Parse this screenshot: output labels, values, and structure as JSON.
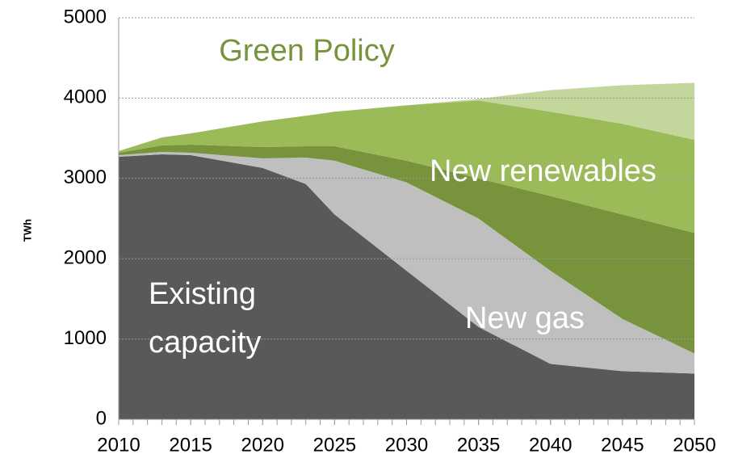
{
  "chart_data": {
    "type": "stacked_area",
    "title": "Green Policy",
    "y_label": "TWh",
    "x": [
      2010,
      2013,
      2015,
      2020,
      2023,
      2025,
      2030,
      2035,
      2040,
      2045,
      2050
    ],
    "series": [
      {
        "name": "Existing capacity",
        "color": "#595959",
        "values": [
          3270,
          3300,
          3290,
          3130,
          2930,
          2550,
          1850,
          1150,
          690,
          600,
          570
        ]
      },
      {
        "name": "New gas",
        "color": "#bfbfbf",
        "values": [
          20,
          30,
          30,
          120,
          330,
          670,
          1100,
          1350,
          1160,
          650,
          250
        ]
      },
      {
        "color": "#77933c",
        "values": [
          30,
          80,
          100,
          140,
          140,
          180,
          270,
          500,
          930,
          1300,
          1500
        ]
      },
      {
        "name": "New renewables",
        "color": "#9bbb59",
        "values": [
          20,
          100,
          140,
          320,
          380,
          430,
          690,
          970,
          1050,
          1130,
          1160
        ]
      },
      {
        "color": "#c3d69b",
        "values": [
          0,
          0,
          0,
          0,
          0,
          0,
          0,
          20,
          270,
          480,
          710
        ]
      }
    ],
    "xlim": [
      2010,
      2050
    ],
    "xticks": [
      2010,
      2015,
      2020,
      2025,
      2030,
      2035,
      2040,
      2045,
      2050
    ],
    "ylim": [
      0,
      5000
    ],
    "yticks": [
      0,
      1000,
      2000,
      3000,
      4000,
      5000
    ],
    "grid": true,
    "title_color": "#77933c"
  }
}
